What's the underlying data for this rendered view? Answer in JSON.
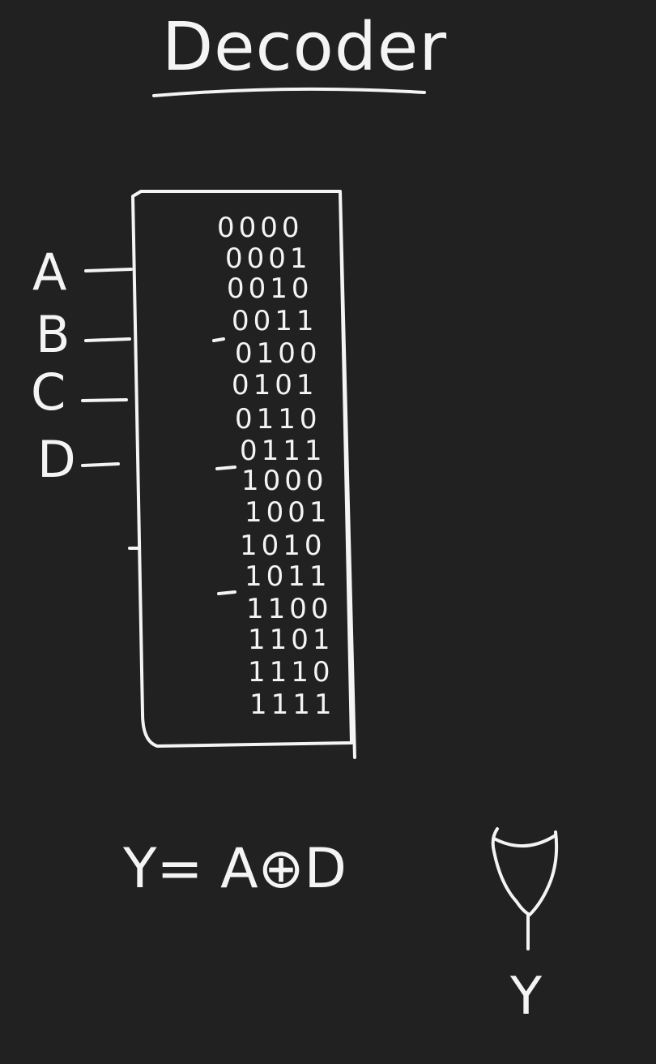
{
  "title": "Decoder",
  "inputs": [
    "A",
    "B",
    "C",
    "D"
  ],
  "truth_rows": [
    "0000",
    "0001",
    "0010",
    "0011",
    "0100",
    "0101",
    "0110",
    "0111",
    "1000",
    "1001",
    "1010",
    "1011",
    "1100",
    "1101",
    "1110",
    "1111"
  ],
  "equation": "Y= A⊕D",
  "output_label": "Y",
  "colors": {
    "background": "#212121",
    "ink": "#f4f4f4"
  }
}
